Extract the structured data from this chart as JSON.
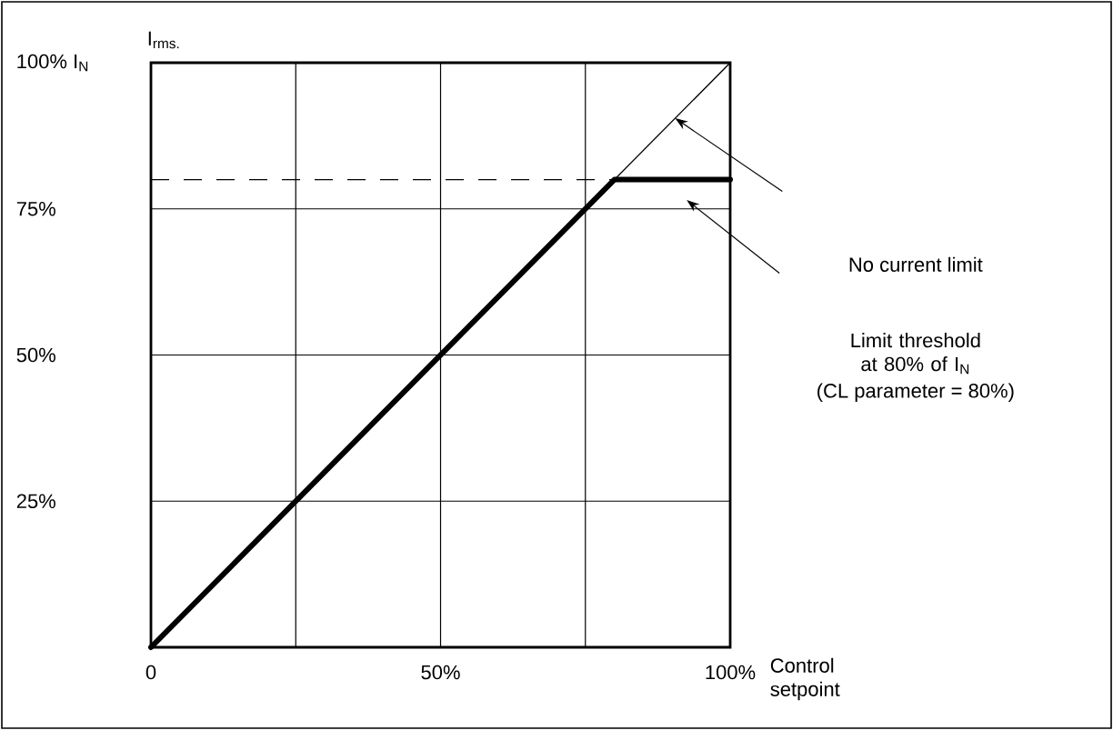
{
  "chart_data": {
    "type": "line",
    "xlabel": "Control setpoint",
    "ylabel": "I$_{rms.}$",
    "xlim": [
      0,
      100
    ],
    "ylim": [
      0,
      100
    ],
    "xticks": [
      0,
      {
        "value": 25,
        "label": null
      },
      {
        "value": 50,
        "label": "50%"
      },
      {
        "value": 75,
        "label": null
      },
      {
        "value": 100,
        "label": "100%"
      }
    ],
    "yticks": [
      {
        "value": 25,
        "label": "25%"
      },
      {
        "value": 50,
        "label": "50%"
      },
      {
        "value": 75,
        "label": "75%"
      },
      {
        "value": 100,
        "label": "100% I$_{N}$"
      }
    ],
    "grid": true,
    "marker": "none",
    "line_style": "solid",
    "series": [
      {
        "color": "#000000",
        "x": [
          0,
          100
        ],
        "values": [
          0,
          100
        ]
      },
      {
        "color": "#000000",
        "x": [
          0,
          80,
          100
        ],
        "values": [
          0,
          80,
          80
        ]
      }
    ],
    "ref_lines": [
      {
        "axis": "y",
        "value": 80,
        "line_style": "dashed",
        "color": "#000000"
      }
    ],
    "annotations": [
      "No current limit",
      "Limit threshold at 80% of I$_{N}$",
      "(CL parameter = 80%)"
    ]
  }
}
